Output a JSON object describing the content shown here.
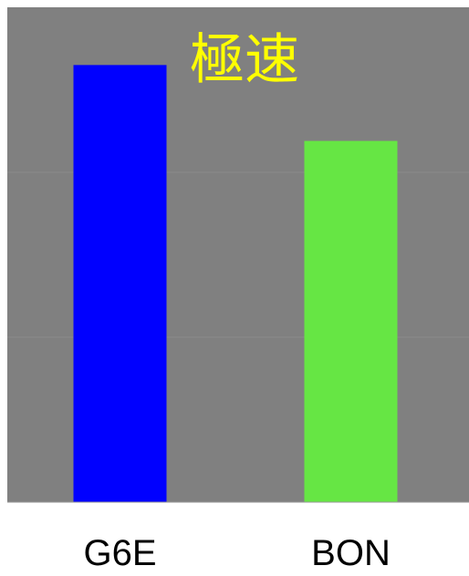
{
  "chart_data": {
    "type": "bar",
    "title": "極速",
    "categories": [
      "G6E",
      "BON"
    ],
    "values": [
      2.65,
      2.19
    ],
    "ylim": [
      0,
      3.0
    ],
    "y_gridlines": [
      1.0,
      2.0
    ],
    "bar_colors": [
      "#0000ff",
      "#66e644"
    ],
    "title_color": "#ffff00",
    "plot_background": "#808080",
    "gridline_color": "#8a8a8a",
    "xlabel": "",
    "ylabel": "",
    "grid": true,
    "legend": "none"
  }
}
